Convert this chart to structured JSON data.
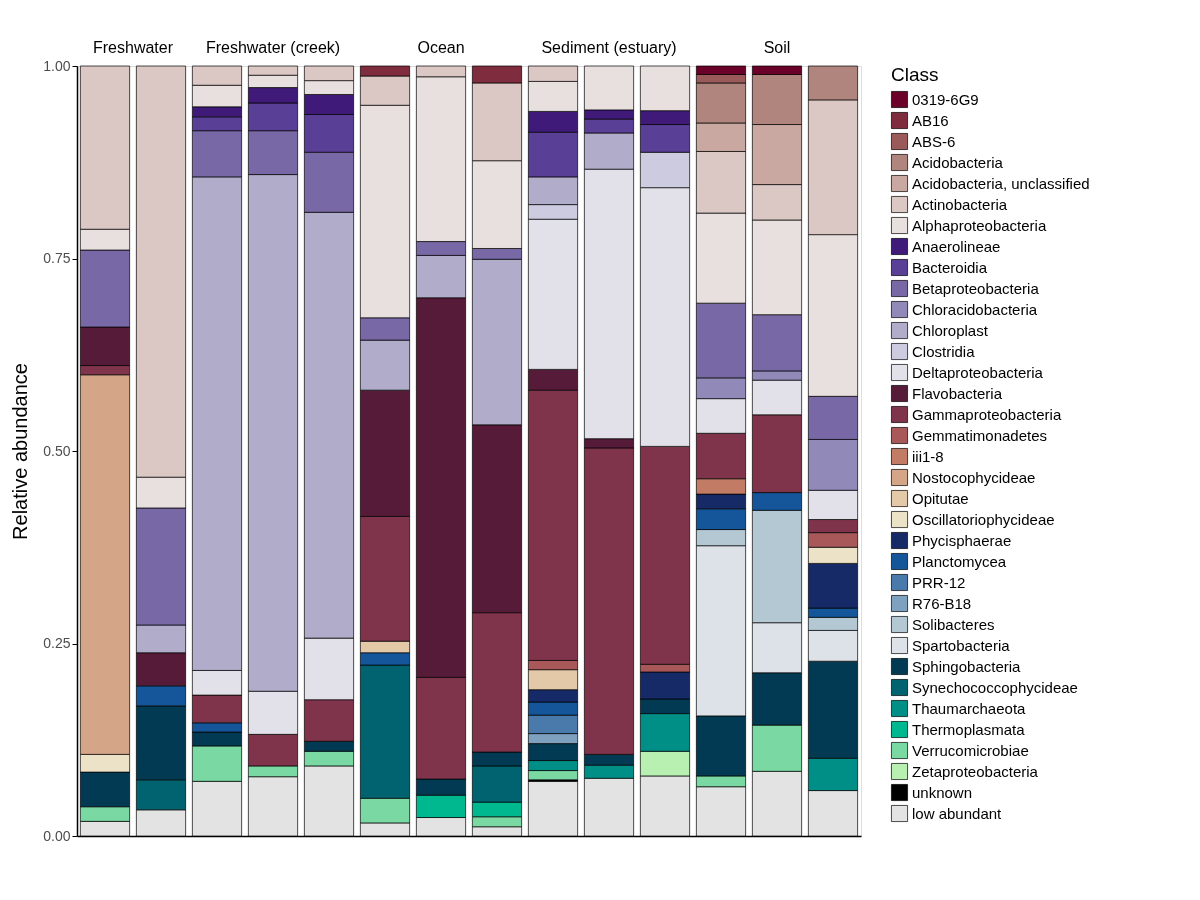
{
  "chart_data": {
    "type": "bar",
    "ylabel": "Relative abundance",
    "legend_title": "Class",
    "legend": "right",
    "stacked": true,
    "annotations": [
      "Freshwater",
      "Freshwater (creek)",
      "Ocean",
      "Sediment (estuary)",
      "Soil"
    ],
    "categories": [
      null,
      null,
      null,
      null,
      null,
      null,
      null,
      null,
      null,
      null,
      null,
      null,
      null,
      null
    ],
    "ylim": [
      0,
      1
    ],
    "yticks": [
      {
        "value": 0,
        "label": "0.00"
      },
      0.25,
      {
        "value": 0.5,
        "label": "0.50"
      },
      0.75,
      {
        "value": 1,
        "label": "1.00"
      }
    ],
    "series": [
      {
        "name": "low abundant",
        "color": "#e3e3e3",
        "values": [
          0.019,
          0.034,
          0.071,
          0.077,
          0.091,
          0.017,
          0.024,
          0.012,
          0.071,
          0.075,
          0.078,
          0.064,
          0.084,
          0.059
        ]
      },
      {
        "name": "unknown",
        "color": "#000000",
        "values": [
          null,
          null,
          null,
          null,
          null,
          null,
          null,
          null,
          0.002,
          null,
          null,
          null,
          null,
          null
        ]
      },
      {
        "name": "Zetaproteobacteria",
        "color": "#b8f0b2",
        "values": [
          null,
          null,
          null,
          null,
          null,
          null,
          null,
          null,
          null,
          null,
          0.032,
          null,
          null,
          null
        ]
      },
      {
        "name": "Verrucomicrobiae",
        "color": "#7ad9a2",
        "values": [
          0.019,
          null,
          0.046,
          0.014,
          0.019,
          0.032,
          null,
          0.013,
          0.012,
          null,
          null,
          0.014,
          0.06,
          null
        ]
      },
      {
        "name": "Thermoplasmata",
        "color": "#00b890",
        "values": [
          null,
          null,
          null,
          null,
          null,
          null,
          0.029,
          0.019,
          null,
          null,
          null,
          null,
          null,
          null
        ]
      },
      {
        "name": "Thaumarchaeota",
        "color": "#008f86",
        "values": [
          null,
          null,
          null,
          null,
          null,
          null,
          null,
          null,
          0.013,
          0.017,
          0.049,
          null,
          null,
          0.042
        ]
      },
      {
        "name": "Synechococcophycideae",
        "color": "#01636f",
        "values": [
          null,
          0.039,
          null,
          null,
          null,
          0.173,
          null,
          0.047,
          null,
          null,
          null,
          null,
          null,
          null
        ]
      },
      {
        "name": "Sphingobacteria",
        "color": "#013a52",
        "values": [
          0.045,
          0.096,
          0.018,
          null,
          0.013,
          null,
          0.021,
          0.018,
          0.022,
          0.014,
          0.019,
          0.078,
          0.068,
          0.126
        ]
      },
      {
        "name": "Spartobacteria",
        "color": "#dde2e8",
        "values": [
          null,
          null,
          null,
          null,
          null,
          null,
          null,
          null,
          null,
          null,
          null,
          0.221,
          0.065,
          0.04
        ]
      },
      {
        "name": "Solibacteres",
        "color": "#b4c8d4",
        "values": [
          null,
          null,
          null,
          null,
          null,
          null,
          null,
          null,
          null,
          null,
          null,
          0.021,
          0.146,
          0.017
        ]
      },
      {
        "name": "R76-B18",
        "color": "#7fa1c0",
        "values": [
          null,
          null,
          null,
          null,
          null,
          null,
          null,
          null,
          0.013,
          null,
          null,
          null,
          null,
          null
        ]
      },
      {
        "name": "PRR-12",
        "color": "#4a7aac",
        "values": [
          null,
          null,
          null,
          null,
          null,
          null,
          null,
          null,
          0.024,
          null,
          null,
          null,
          null,
          null
        ]
      },
      {
        "name": "Planctomycea",
        "color": "#15559a",
        "values": [
          null,
          0.026,
          0.012,
          null,
          null,
          0.016,
          null,
          null,
          0.017,
          null,
          null,
          0.027,
          0.023,
          0.012
        ]
      },
      {
        "name": "Phycisphaerae",
        "color": "#172a68",
        "values": [
          null,
          null,
          null,
          null,
          null,
          null,
          null,
          null,
          0.016,
          null,
          0.035,
          0.019,
          null,
          0.058
        ]
      },
      {
        "name": "Oscillatoriophycideae",
        "color": "#ece2c8",
        "values": [
          0.023,
          null,
          null,
          null,
          null,
          null,
          null,
          null,
          null,
          null,
          null,
          null,
          null,
          0.021
        ]
      },
      {
        "name": "Opitutae",
        "color": "#e3c9a8",
        "values": [
          null,
          null,
          null,
          null,
          null,
          0.015,
          null,
          null,
          0.026,
          null,
          null,
          null,
          null,
          null
        ]
      },
      {
        "name": "Nostocophycideae",
        "color": "#d4a586",
        "values": [
          0.493,
          null,
          null,
          null,
          null,
          null,
          null,
          null,
          null,
          null,
          null,
          null,
          null,
          null
        ]
      },
      {
        "name": "iii1-8",
        "color": "#c27c66",
        "values": [
          null,
          null,
          null,
          null,
          null,
          null,
          null,
          null,
          null,
          null,
          null,
          0.02,
          null,
          null
        ]
      },
      {
        "name": "Gemmatimonadetes",
        "color": "#a85858",
        "values": [
          null,
          null,
          null,
          null,
          null,
          null,
          null,
          null,
          0.012,
          null,
          0.01,
          null,
          null,
          0.019
        ]
      },
      {
        "name": "Gammaproteobacteria",
        "color": "#7f344b",
        "values": [
          0.012,
          null,
          0.036,
          0.041,
          0.054,
          0.162,
          0.132,
          0.181,
          0.351,
          0.398,
          0.283,
          0.059,
          0.101,
          0.017
        ]
      },
      {
        "name": "Flavobacteria",
        "color": "#561b38",
        "values": [
          0.05,
          0.043,
          null,
          null,
          null,
          0.164,
          0.493,
          0.244,
          0.027,
          0.012,
          null,
          null,
          null,
          null
        ]
      },
      {
        "name": "Deltaproteobacteria",
        "color": "#e2e1e9",
        "values": [
          null,
          null,
          0.032,
          0.056,
          0.08,
          null,
          null,
          null,
          0.195,
          0.35,
          0.336,
          0.045,
          0.045,
          0.038
        ]
      },
      {
        "name": "Clostridia",
        "color": "#cdcbe0",
        "values": [
          null,
          null,
          null,
          null,
          null,
          null,
          null,
          null,
          0.019,
          null,
          0.046,
          null,
          null,
          null
        ]
      },
      {
        "name": "Chloroplast",
        "color": "#b0acca",
        "values": [
          null,
          0.036,
          0.641,
          0.671,
          0.553,
          0.065,
          0.055,
          0.215,
          0.036,
          0.047,
          null,
          null,
          null,
          null
        ]
      },
      {
        "name": "Chloracidobacteria",
        "color": "#9189b8",
        "values": [
          null,
          null,
          null,
          null,
          null,
          null,
          null,
          null,
          null,
          null,
          null,
          0.027,
          0.012,
          0.066
        ]
      },
      {
        "name": "Betaproteobacteria",
        "color": "#7868a6",
        "values": [
          0.1,
          0.152,
          0.06,
          0.057,
          0.078,
          0.029,
          0.018,
          0.014,
          null,
          null,
          null,
          0.097,
          0.073,
          0.056
        ]
      },
      {
        "name": "Bacteroidia",
        "color": "#5a3f96",
        "values": [
          null,
          null,
          0.018,
          0.036,
          0.049,
          null,
          null,
          null,
          0.058,
          0.018,
          0.036,
          null,
          null,
          null
        ]
      },
      {
        "name": "Anaerolineae",
        "color": "#3f1a78",
        "values": [
          null,
          null,
          0.013,
          0.02,
          0.026,
          null,
          null,
          null,
          0.027,
          0.012,
          0.018,
          null,
          null,
          null
        ]
      },
      {
        "name": "Alphaproteobacteria",
        "color": "#e8e0de",
        "values": [
          0.027,
          0.04,
          0.028,
          0.016,
          0.018,
          0.276,
          0.214,
          0.114,
          0.039,
          0.057,
          0.058,
          0.117,
          0.123,
          0.21
        ]
      },
      {
        "name": "Actinobacteria",
        "color": "#dbc8c4",
        "values": [
          0.212,
          0.534,
          0.025,
          0.012,
          0.019,
          0.038,
          0.014,
          0.101,
          0.02,
          null,
          null,
          0.08,
          0.046,
          0.175
        ]
      },
      {
        "name": "Acidobacteria, unclassified",
        "color": "#c9a8a2",
        "values": [
          null,
          null,
          null,
          null,
          null,
          null,
          null,
          null,
          null,
          null,
          null,
          0.037,
          0.078,
          null
        ]
      },
      {
        "name": "Acidobacteria",
        "color": "#b0857d",
        "values": [
          null,
          null,
          null,
          null,
          null,
          null,
          null,
          null,
          null,
          null,
          null,
          0.052,
          0.065,
          0.044
        ]
      },
      {
        "name": "ABS-6",
        "color": "#9a5a5a",
        "values": [
          null,
          null,
          null,
          null,
          null,
          null,
          null,
          null,
          null,
          null,
          null,
          0.011,
          null,
          null
        ]
      },
      {
        "name": "AB16",
        "color": "#7f2d3e",
        "values": [
          null,
          null,
          null,
          null,
          null,
          0.013,
          null,
          0.022,
          null,
          null,
          null,
          null,
          null,
          null
        ]
      },
      {
        "name": "0319-6G9",
        "color": "#6b0029",
        "values": [
          null,
          null,
          null,
          null,
          null,
          null,
          null,
          null,
          null,
          null,
          null,
          0.011,
          0.011,
          null
        ]
      }
    ]
  }
}
